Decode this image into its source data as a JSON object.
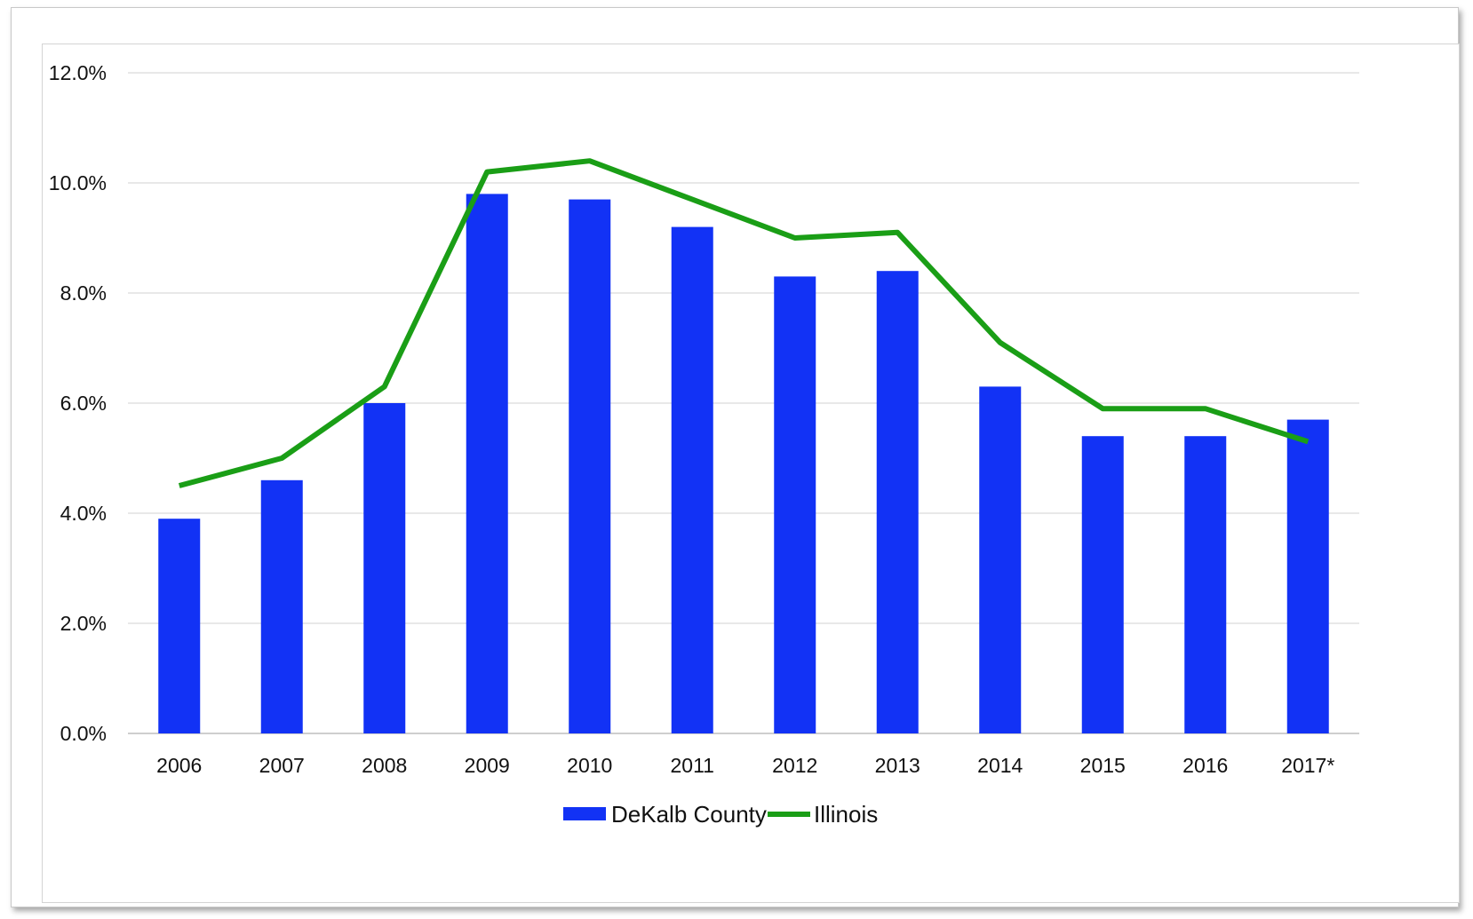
{
  "chart_data": {
    "type": "bar",
    "categories": [
      "2006",
      "2007",
      "2008",
      "2009",
      "2010",
      "2011",
      "2012",
      "2013",
      "2014",
      "2015",
      "2016",
      "2017*"
    ],
    "series": [
      {
        "name": "DeKalb County",
        "type": "bar",
        "color": "#1232f5",
        "values": [
          3.9,
          4.6,
          6.0,
          9.8,
          9.7,
          9.2,
          8.3,
          8.4,
          6.3,
          5.4,
          5.4,
          5.7
        ]
      },
      {
        "name": "Illinois",
        "type": "line",
        "color": "#1a9e16",
        "values": [
          4.5,
          5.0,
          6.3,
          10.2,
          10.4,
          9.7,
          9.0,
          9.1,
          7.1,
          5.9,
          5.9,
          5.3
        ]
      }
    ],
    "ylim": [
      0,
      12
    ],
    "yticks": [
      0,
      2,
      4,
      6,
      8,
      10,
      12
    ],
    "ytick_format": "percent_1dp",
    "grid": true,
    "legend": "bottom-center",
    "title": "",
    "xlabel": "",
    "ylabel": ""
  }
}
